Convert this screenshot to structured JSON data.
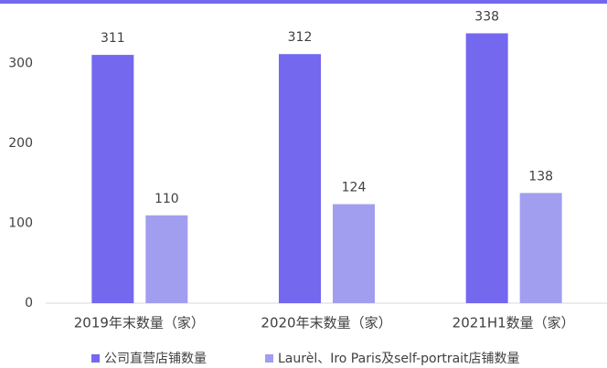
{
  "chart_data": {
    "type": "bar",
    "categories": [
      "2019年末数量（家）",
      "2020年末数量（家）",
      "2021H1数量（家）"
    ],
    "series": [
      {
        "name": "公司直营店铺数量",
        "color": "#7468ee",
        "values": [
          311,
          312,
          338
        ]
      },
      {
        "name": "Laurèl、Iro Paris及self-portrait店铺数量",
        "color": "#a19ef0",
        "values": [
          110,
          124,
          138
        ]
      }
    ],
    "ylim": [
      0,
      350
    ],
    "yticks": [
      0,
      100,
      200,
      300
    ],
    "grid": false,
    "legend": "bottom"
  }
}
